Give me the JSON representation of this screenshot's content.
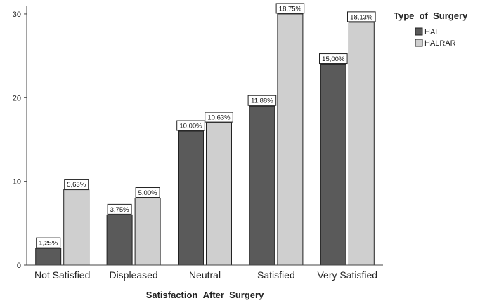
{
  "chart_data": {
    "type": "bar",
    "categories": [
      "Not Satisfied",
      "Displeased",
      "Neutral",
      "Satisfied",
      "Very Satisfied"
    ],
    "series": [
      {
        "name": "HAL",
        "values": [
          2,
          6,
          16,
          19,
          24
        ],
        "labels": [
          "1,25%",
          "3,75%",
          "10,00%",
          "11,88%",
          "15,00%"
        ],
        "color": "#5a5a5a"
      },
      {
        "name": "HALRAR",
        "values": [
          9,
          8,
          17,
          30,
          29
        ],
        "labels": [
          "5,63%",
          "5,00%",
          "10,63%",
          "18,75%",
          "18,13%"
        ],
        "color": "#cfcfcf"
      }
    ],
    "title": "",
    "xlabel": "Satisfaction_After_Surgery",
    "ylabel": "",
    "ylim": [
      0,
      31
    ],
    "yticks": [
      0,
      10,
      20,
      30
    ],
    "grid": false,
    "legend_title": "Type_of_Surgery",
    "legend_position": "top-right"
  }
}
